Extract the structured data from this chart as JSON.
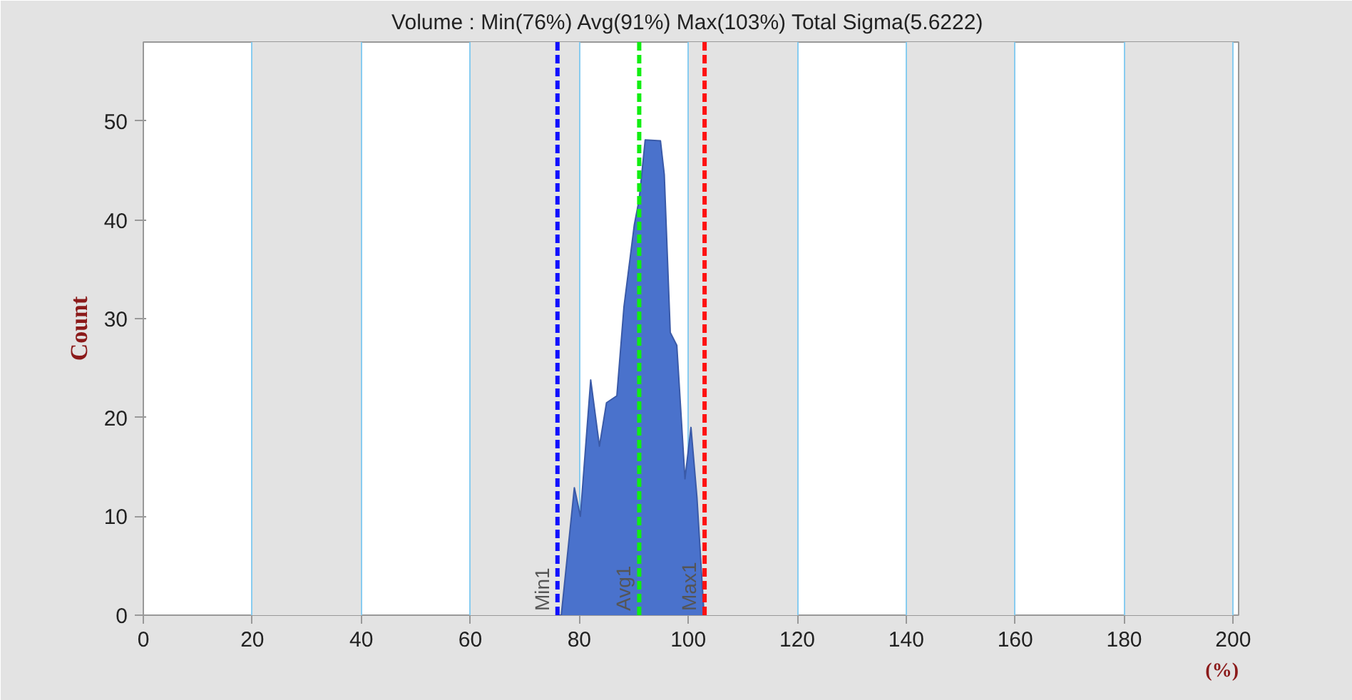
{
  "chart_data": {
    "type": "area",
    "title": "Volume : Min(76%) Avg(91%) Max(103%)  Total Sigma(5.6222)",
    "xlabel": "(%)",
    "ylabel": "Count",
    "x": [
      76.3,
      76.7,
      79.1,
      80.2,
      82.1,
      83.7,
      85.0,
      86.9,
      88.2,
      90.1,
      91.0,
      92.1,
      94.9,
      95.6,
      96.7,
      97.9,
      99.4,
      100.5,
      101.6,
      102.9
    ],
    "series": [
      {
        "color": "#4a72cc",
        "values": [
          0,
          0,
          12.9,
          10,
          23.8,
          17.1,
          21.5,
          22.2,
          31.2,
          39.5,
          42.1,
          48.1,
          48,
          44.6,
          28.6,
          27.3,
          13.8,
          19,
          11.9,
          0
        ]
      }
    ],
    "xlim": [
      0,
      201
    ],
    "ylim": [
      0,
      58
    ],
    "xticks": [
      0,
      20,
      40,
      60,
      80,
      100,
      120,
      140,
      160,
      180,
      200
    ],
    "yticks": [
      0,
      10,
      20,
      30,
      40,
      50
    ],
    "grid": "x",
    "ref_lines": [
      {
        "axis": "x",
        "value": 76,
        "label": "Min1",
        "color": "#1010ff",
        "line_style": "dashed"
      },
      {
        "axis": "x",
        "value": 91,
        "label": "Avg1",
        "color": "#11ee11",
        "line_style": "dashed"
      },
      {
        "axis": "x",
        "value": 103,
        "label": "Max1",
        "color": "#ff1111",
        "line_style": "dashed"
      }
    ]
  }
}
